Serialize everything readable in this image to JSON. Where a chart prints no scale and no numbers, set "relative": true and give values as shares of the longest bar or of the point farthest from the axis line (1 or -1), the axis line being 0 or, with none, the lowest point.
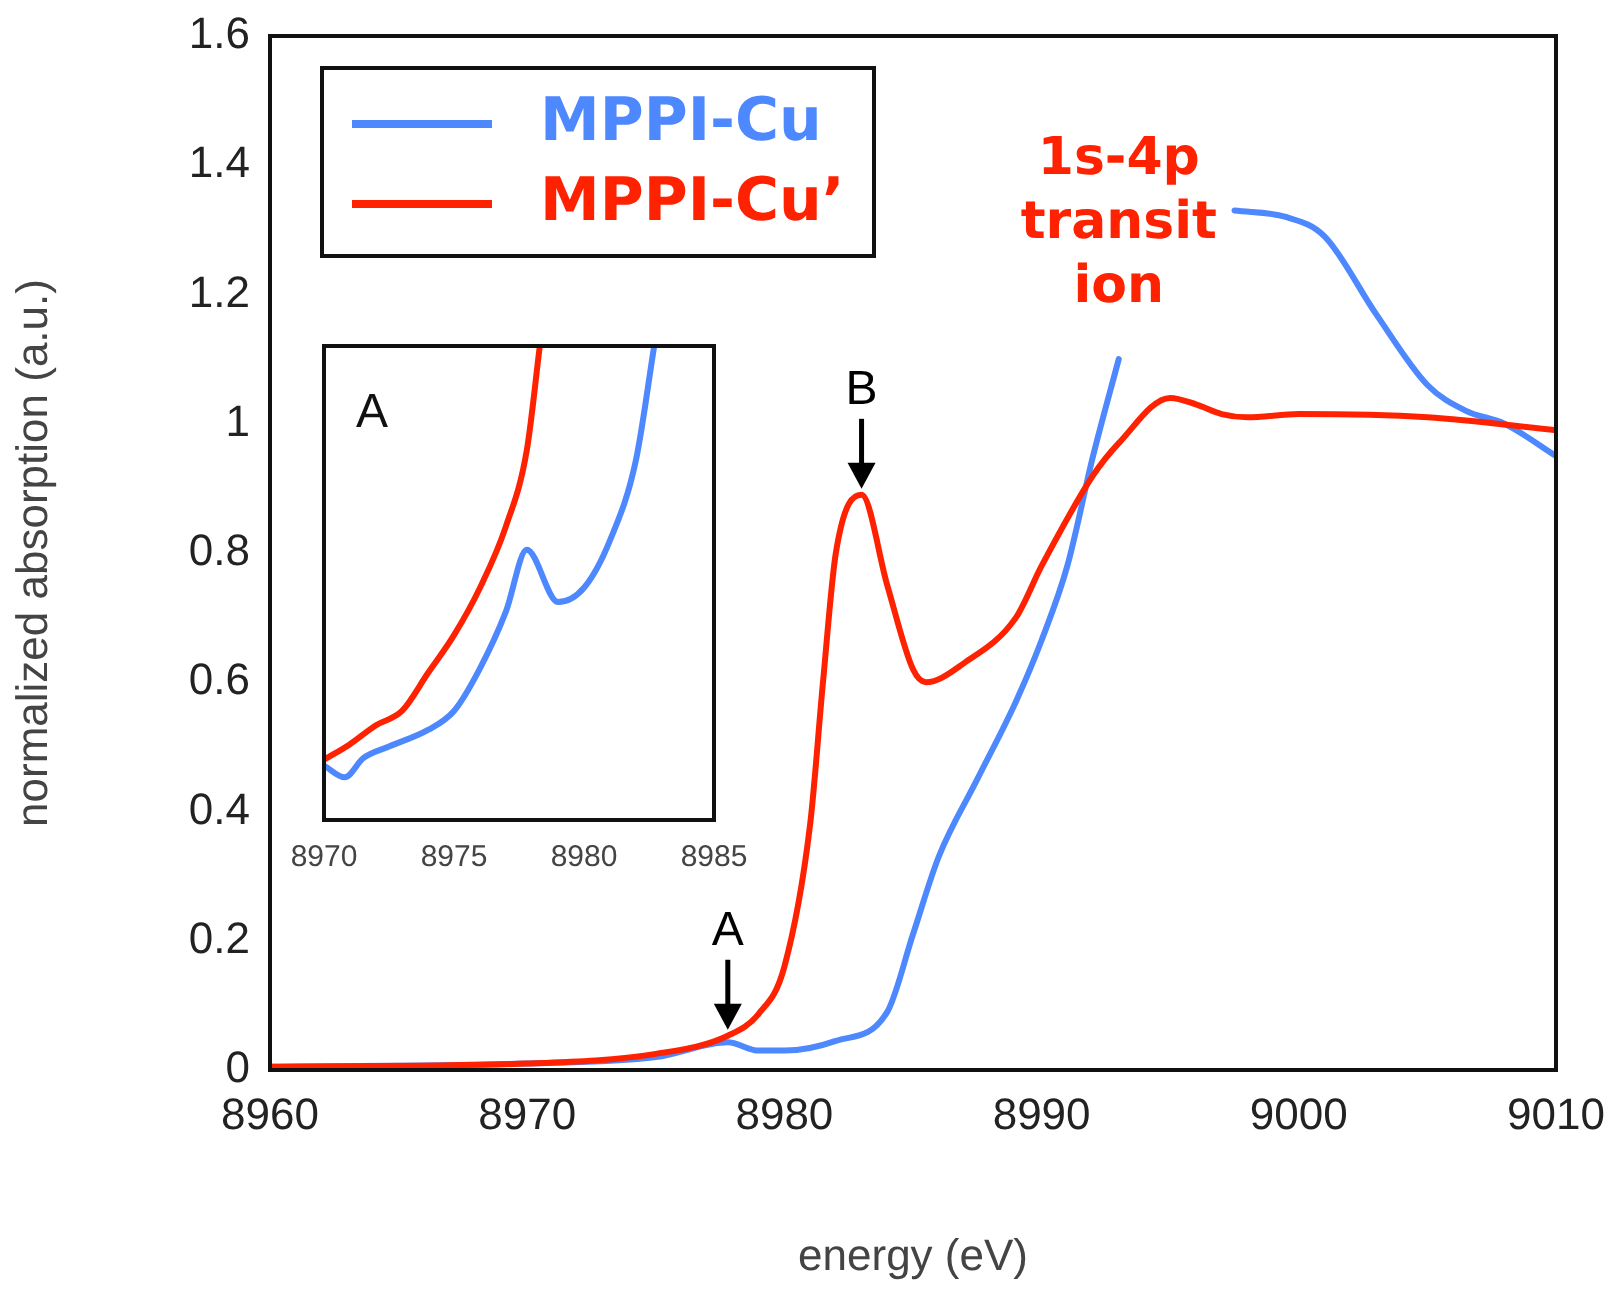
{
  "chart_data": [
    {
      "type": "line",
      "xlabel": "energy (eV)",
      "ylabel": "normalized absorption (a.u.)",
      "xlim": [
        8960,
        9010
      ],
      "xticks": [
        8960,
        8970,
        8980,
        8990,
        9000,
        9010
      ],
      "ylim": [
        0,
        1.6
      ],
      "yticks": [
        0,
        0.2,
        0.4,
        0.6,
        0.8,
        1,
        1.2,
        1.4,
        1.6
      ],
      "grid": false,
      "legend": "top left",
      "marker": "none",
      "annotations": [
        "1s-4p\ntransit\nion",
        {
          "text": "A",
          "x": 8977.8,
          "y": 0.053
        },
        {
          "text": "B",
          "x": 8983,
          "y": 0.89
        }
      ],
      "series": [
        {
          "name": "MPPI-Cu",
          "color": "#4d88ff",
          "x": [
            8960,
            8970,
            8975,
            8977.8,
            8979,
            8980,
            8982,
            8984,
            8985,
            8986,
            8987.5,
            8989,
            8990,
            8991,
            8992,
            8993,
            8995,
            8997.5,
            8999.5,
            9001,
            9003,
            9005,
            9006.5,
            9008,
            9010
          ],
          "values": [
            0.005,
            0.01,
            0.02,
            0.043,
            0.03,
            0.03,
            0.045,
            0.09,
            0.21,
            0.33,
            0.45,
            0.57,
            0.665,
            0.78,
            0.95,
            1.1,
            null,
            1.33,
            1.32,
            1.29,
            1.17,
            1.06,
            1.02,
            1.0,
            0.95
          ]
        },
        {
          "name": "MPPI-Cu’",
          "color": "#ff2200",
          "x": [
            8960,
            8970,
            8975,
            8977.8,
            8979,
            8980,
            8981,
            8981.5,
            8982,
            8983,
            8984,
            8985,
            8985.5,
            8987,
            8989,
            8990,
            8992,
            8993,
            8995,
            8996,
            8997,
            8998,
            9000,
            9005,
            9010
          ],
          "values": [
            0.005,
            0.01,
            0.025,
            0.053,
            0.087,
            0.16,
            0.38,
            0.6,
            0.8,
            0.89,
            0.75,
            0.62,
            0.6,
            0.63,
            0.7,
            0.78,
            0.92,
            0.97,
            1.04,
            1.03,
            1.015,
            1.01,
            1.015,
            1.01,
            0.99
          ]
        }
      ]
    },
    {
      "type": "line",
      "relative": true,
      "xlim": [
        8970,
        8985
      ],
      "xticks": [
        8970,
        8975,
        8980,
        8985
      ],
      "tick_labels": "x",
      "grid": false,
      "legend": false,
      "marker": "none",
      "annotations": [
        "A"
      ],
      "series": [
        {
          "color": "#4d88ff",
          "x": [
            8970,
            8970.8,
            8971.5,
            8972.5,
            8974,
            8975,
            8976,
            8977,
            8977.8,
            8979,
            8980,
            8981,
            8982,
            8982.7
          ],
          "values": [
            0.115,
            0.09,
            0.13,
            0.155,
            0.19,
            0.23,
            0.32,
            0.44,
            0.57,
            0.46,
            0.49,
            0.59,
            0.76,
            1
          ]
        },
        {
          "color": "#ff2200",
          "x": [
            8970,
            8971,
            8972,
            8973,
            8974,
            8975,
            8976,
            8977,
            8977.8,
            8978.3
          ],
          "values": [
            0.127,
            0.16,
            0.2,
            0.23,
            0.31,
            0.39,
            0.49,
            0.62,
            0.78,
            1
          ]
        }
      ]
    }
  ]
}
